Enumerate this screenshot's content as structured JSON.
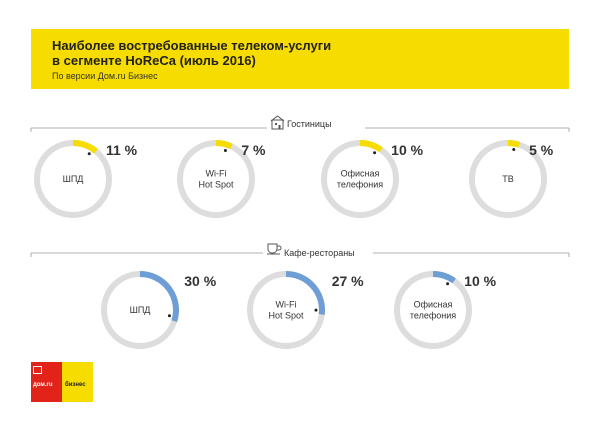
{
  "header": {
    "title_line1": "Наиболее востребованные телеком-услуги",
    "title_line2": "в сегменте HoReCa (июль 2016)",
    "subtitle": "По версии Дом.ru Бизнес"
  },
  "logo": {
    "left_text": "дом.ru",
    "right_text": "бизнес"
  },
  "colors": {
    "header_bg": "#f7dc00",
    "hotel_accent": "#f7dc00",
    "restaurant_accent": "#6e9ed6",
    "track": "#dddddd",
    "logo_red": "#e2231a"
  },
  "chart_data": [
    {
      "type": "pie",
      "section_label": "Гостиницы",
      "section_icon": "hotel-icon",
      "color": "#f7dc00",
      "categories": [
        "ШПД",
        "Wi-Fi Hot Spot",
        "Офисная телефония",
        "ТВ"
      ],
      "category_lines": [
        [
          "ШПД"
        ],
        [
          "Wi-Fi",
          "Hot Spot"
        ],
        [
          "Офисная",
          "телефония"
        ],
        [
          "ТВ"
        ]
      ],
      "values": [
        11,
        7,
        10,
        5
      ],
      "value_labels": [
        "11 %",
        "7 %",
        "10 %",
        "5 %"
      ],
      "unit": "%"
    },
    {
      "type": "pie",
      "section_label": "Кафе-рестораны",
      "section_icon": "coffee-cup-icon",
      "color": "#6e9ed6",
      "categories": [
        "ШПД",
        "Wi-Fi Hot Spot",
        "Офисная телефония"
      ],
      "category_lines": [
        [
          "ШПД"
        ],
        [
          "Wi-Fi",
          "Hot Spot"
        ],
        [
          "Офисная",
          "телефония"
        ]
      ],
      "values": [
        30,
        27,
        10
      ],
      "value_labels": [
        "30 %",
        "27 %",
        "10 %"
      ],
      "unit": "%"
    }
  ]
}
